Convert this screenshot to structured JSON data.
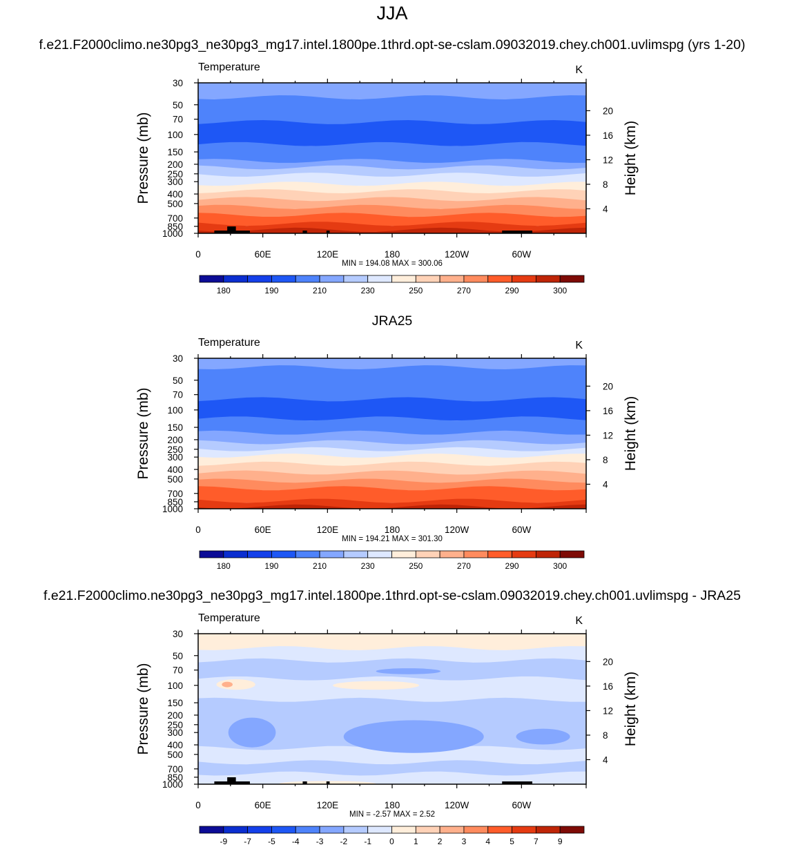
{
  "figure": {
    "title": "JJA",
    "case_title": "f.e21.F2000climo.ne30pg3_ne30pg3_mg17.intel.1800pe.1thrd.opt-se-cslam.09032019.chey.ch001.uvlimspg (yrs 1-20)",
    "ref_title": "JRA25",
    "diff_title": "f.e21.F2000climo.ne30pg3_ne30pg3_mg17.intel.1800pe.1thrd.opt-se-cslam.09032019.chey.ch001.uvlimspg - JRA25"
  },
  "chart_data": [
    {
      "type": "heatmap",
      "title": "Temperature",
      "units": "K",
      "ylabel": "Pressure (mb)",
      "ylabel_right": "Height (km)",
      "x_ticks": [
        "0",
        "60E",
        "120E",
        "180",
        "120W",
        "60W"
      ],
      "y_ticks": [
        "30",
        "50",
        "70",
        "100",
        "150",
        "200",
        "250",
        "300",
        "400",
        "500",
        "700",
        "850",
        "1000"
      ],
      "y_right_ticks": [
        "20",
        "16",
        "12",
        "8",
        "4"
      ],
      "stats": "MIN = 194.08  MAX = 300.06",
      "colorbar_labels": [
        "180",
        "190",
        "210",
        "230",
        "250",
        "270",
        "290",
        "300"
      ],
      "min": 194.08,
      "max": 300.06,
      "bands": [
        {
          "p_top": 30,
          "p_bot": 42,
          "color": "#84a7ff"
        },
        {
          "p_top": 42,
          "p_bot": 75,
          "color": "#4e83fb"
        },
        {
          "p_top": 75,
          "p_bot": 125,
          "color": "#1e57f5"
        },
        {
          "p_top": 125,
          "p_bot": 185,
          "color": "#4e83fb"
        },
        {
          "p_top": 185,
          "p_bot": 215,
          "color": "#84a7ff"
        },
        {
          "p_top": 215,
          "p_bot": 255,
          "color": "#b5cbff"
        },
        {
          "p_top": 255,
          "p_bot": 315,
          "color": "#dee8ff"
        },
        {
          "p_top": 315,
          "p_bot": 375,
          "color": "#ffeedb"
        },
        {
          "p_top": 375,
          "p_bot": 450,
          "color": "#ffd2b7"
        },
        {
          "p_top": 450,
          "p_bot": 540,
          "color": "#ffb08c"
        },
        {
          "p_top": 540,
          "p_bot": 650,
          "color": "#ff8b5e"
        },
        {
          "p_top": 650,
          "p_bot": 800,
          "color": "#ff5c2a"
        },
        {
          "p_top": 800,
          "p_bot": 920,
          "color": "#e53b12"
        },
        {
          "p_top": 920,
          "p_bot": 1000,
          "color": "#bf2507"
        }
      ]
    },
    {
      "type": "heatmap",
      "title": "Temperature",
      "units": "K",
      "ylabel": "Pressure (mb)",
      "ylabel_right": "Height (km)",
      "x_ticks": [
        "0",
        "60E",
        "120E",
        "180",
        "120W",
        "60W"
      ],
      "y_ticks": [
        "30",
        "50",
        "70",
        "100",
        "150",
        "200",
        "250",
        "300",
        "400",
        "500",
        "700",
        "850",
        "1000"
      ],
      "y_right_ticks": [
        "20",
        "16",
        "12",
        "8",
        "4"
      ],
      "stats": "MIN = 194.21  MAX = 301.30",
      "colorbar_labels": [
        "180",
        "190",
        "210",
        "230",
        "250",
        "270",
        "290",
        "300"
      ],
      "min": 194.21,
      "max": 301.3,
      "bands": [
        {
          "p_top": 30,
          "p_bot": 37,
          "color": "#84a7ff"
        },
        {
          "p_top": 37,
          "p_bot": 78,
          "color": "#4e83fb"
        },
        {
          "p_top": 78,
          "p_bot": 122,
          "color": "#1e57f5"
        },
        {
          "p_top": 122,
          "p_bot": 170,
          "color": "#4e83fb"
        },
        {
          "p_top": 170,
          "p_bot": 212,
          "color": "#84a7ff"
        },
        {
          "p_top": 212,
          "p_bot": 250,
          "color": "#b5cbff"
        },
        {
          "p_top": 250,
          "p_bot": 290,
          "color": "#dee8ff"
        },
        {
          "p_top": 290,
          "p_bot": 350,
          "color": "#ffeedb"
        },
        {
          "p_top": 350,
          "p_bot": 430,
          "color": "#ffd2b7"
        },
        {
          "p_top": 430,
          "p_bot": 520,
          "color": "#ffb08c"
        },
        {
          "p_top": 520,
          "p_bot": 620,
          "color": "#ff8b5e"
        },
        {
          "p_top": 620,
          "p_bot": 830,
          "color": "#ff5c2a"
        },
        {
          "p_top": 830,
          "p_bot": 950,
          "color": "#e53b12"
        },
        {
          "p_top": 950,
          "p_bot": 1000,
          "color": "#bf2507"
        }
      ]
    },
    {
      "type": "heatmap",
      "title": "Temperature",
      "units": "K",
      "ylabel": "Pressure (mb)",
      "ylabel_right": "Height (km)",
      "x_ticks": [
        "0",
        "60E",
        "120E",
        "180",
        "120W",
        "60W"
      ],
      "y_ticks": [
        "30",
        "50",
        "70",
        "100",
        "150",
        "200",
        "250",
        "300",
        "400",
        "500",
        "700",
        "850",
        "1000"
      ],
      "y_right_ticks": [
        "20",
        "16",
        "12",
        "8",
        "4"
      ],
      "stats": "MIN =  -2.57  MAX =   2.52",
      "colorbar_labels": [
        "-9",
        "-7",
        "-5",
        "-4",
        "-3",
        "-2",
        "-1",
        "0",
        "1",
        "2",
        "3",
        "4",
        "5",
        "7",
        "9"
      ],
      "min": -2.57,
      "max": 2.52,
      "bands": [
        {
          "p_top": 30,
          "p_bot": 42,
          "color": "#ffeedb"
        },
        {
          "p_top": 42,
          "p_bot": 56,
          "color": "#dee8ff"
        },
        {
          "p_top": 56,
          "p_bot": 85,
          "color": "#b5cbff"
        },
        {
          "p_top": 85,
          "p_bot": 140,
          "color": "#dee8ff"
        },
        {
          "p_top": 140,
          "p_bot": 430,
          "color": "#b5cbff"
        },
        {
          "p_top": 430,
          "p_bot": 600,
          "color": "#dee8ff"
        },
        {
          "p_top": 600,
          "p_bot": 780,
          "color": "#b5cbff"
        },
        {
          "p_top": 780,
          "p_bot": 1000,
          "color": "#dee8ff"
        }
      ],
      "blobs": [
        {
          "lon": 35,
          "p": 98,
          "rlon": 18,
          "p_half": 12,
          "color": "#ffeedb"
        },
        {
          "lon": 27,
          "p": 98,
          "rlon": 5,
          "p_half": 5,
          "color": "#ffb08c"
        },
        {
          "lon": 165,
          "p": 100,
          "rlon": 40,
          "p_half": 10,
          "color": "#ffeedb"
        },
        {
          "lon": 200,
          "p": 330,
          "rlon": 65,
          "p_half": 120,
          "color": "#84a7ff"
        },
        {
          "lon": 50,
          "p": 300,
          "rlon": 22,
          "p_half": 100,
          "color": "#84a7ff"
        },
        {
          "lon": 320,
          "p": 330,
          "rlon": 25,
          "p_half": 60,
          "color": "#84a7ff"
        },
        {
          "lon": 120,
          "p": 990,
          "rlon": 45,
          "p_half": 10,
          "color": "#ffeedb"
        },
        {
          "lon": 195,
          "p": 72,
          "rlon": 30,
          "p_half": 5,
          "color": "#84a7ff"
        }
      ]
    }
  ]
}
